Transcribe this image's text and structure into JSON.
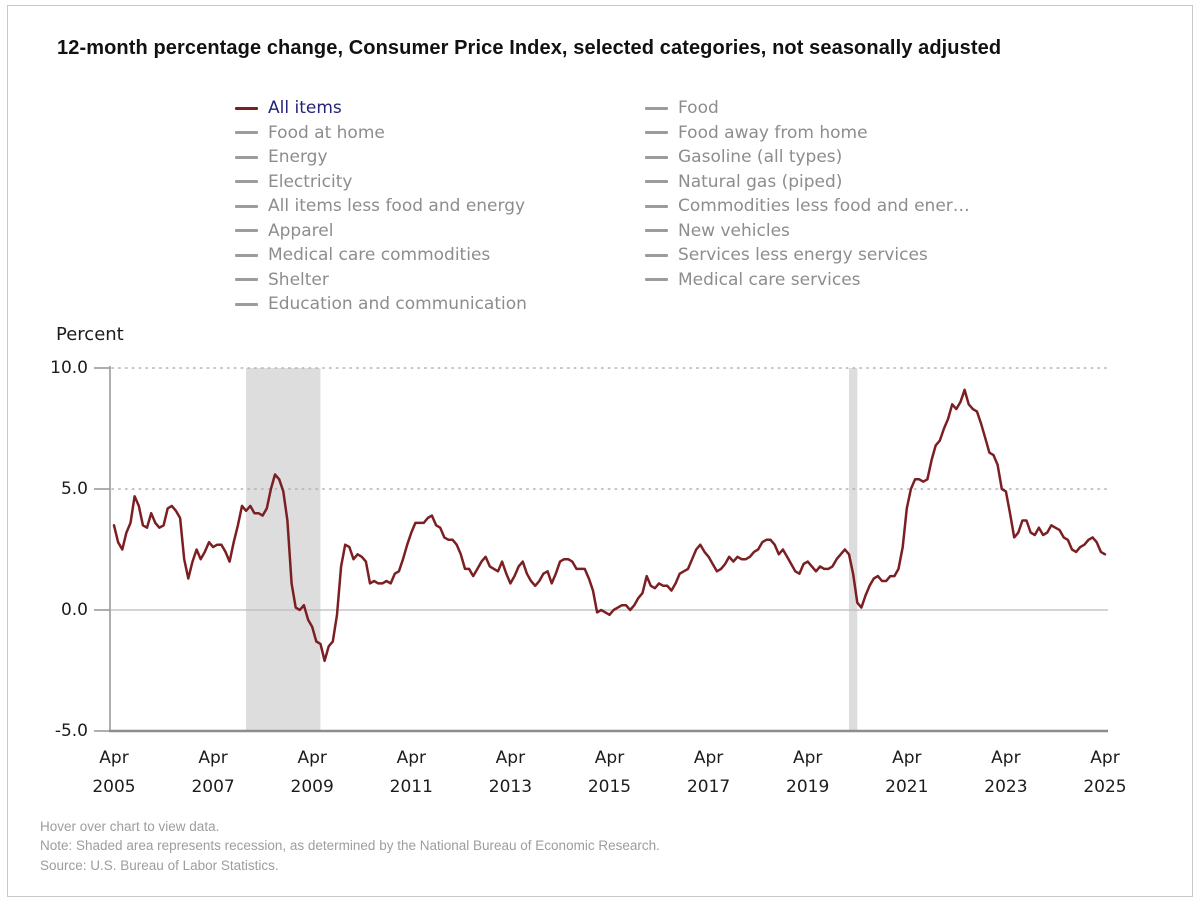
{
  "title": "12-month percentage change, Consumer Price Index, selected categories, not seasonally adjusted",
  "y_axis_title": "Percent",
  "legend": {
    "columns": [
      {
        "items": [
          {
            "label": "All items",
            "active": true
          },
          {
            "label": "Food at home",
            "active": false
          },
          {
            "label": "Energy",
            "active": false
          },
          {
            "label": "Electricity",
            "active": false
          },
          {
            "label": "All items less food and energy",
            "active": false
          },
          {
            "label": "Apparel",
            "active": false
          },
          {
            "label": "Medical care commodities",
            "active": false
          },
          {
            "label": "Shelter",
            "active": false
          },
          {
            "label": "Education and communication",
            "active": false
          }
        ]
      },
      {
        "items": [
          {
            "label": "Food",
            "active": false
          },
          {
            "label": "Food away from home",
            "active": false
          },
          {
            "label": "Gasoline (all types)",
            "active": false
          },
          {
            "label": "Natural gas (piped)",
            "active": false
          },
          {
            "label": "Commodities less food and ener…",
            "active": false
          },
          {
            "label": "New vehicles",
            "active": false
          },
          {
            "label": "Services less energy services",
            "active": false
          },
          {
            "label": "Medical care services",
            "active": false
          }
        ]
      }
    ]
  },
  "footer": {
    "hover": "Hover over chart to view data.",
    "note": "Note: Shaded area represents recession, as determined by the National Bureau of Economic Research.",
    "source": "Source: U.S. Bureau of Labor Statistics."
  },
  "colors": {
    "line": "#7c1f23",
    "legend_active_text": "#23237a",
    "legend_text": "#8d8d8d",
    "legend_swatch": "#9c9c9c",
    "recession_band": "#dddddd",
    "grid_dotted": "#b2b2b2",
    "zero_line": "#bbbbbb",
    "axis": "#9a9a9a",
    "x_axis": "#8d8d8d",
    "tick_text": "#1c1c1c",
    "footer_text": "#9d9d9d",
    "title_text": "#111111",
    "border": "#c8c8c8"
  },
  "chart_data": {
    "type": "line",
    "title": "12-month percentage change, Consumer Price Index, selected categories, not seasonally adjusted",
    "ylabel": "Percent",
    "ylim": [
      -5,
      10
    ],
    "grid": "horizontal dotted at 5.0 and 10.0, solid at 0.0",
    "legend_position": "top",
    "y_ticks": [
      {
        "value": 10.0,
        "label": "10.0",
        "grid": "dotted"
      },
      {
        "value": 5.0,
        "label": "5.0",
        "grid": "dotted"
      },
      {
        "value": 0.0,
        "label": "0.0",
        "grid": "solid"
      },
      {
        "value": -5.0,
        "label": "-5.0",
        "grid": "none"
      }
    ],
    "x_ticks": [
      {
        "date": "2005-04",
        "top": "Apr",
        "bottom": "2005"
      },
      {
        "date": "2007-04",
        "top": "Apr",
        "bottom": "2007"
      },
      {
        "date": "2009-04",
        "top": "Apr",
        "bottom": "2009"
      },
      {
        "date": "2011-04",
        "top": "Apr",
        "bottom": "2011"
      },
      {
        "date": "2013-04",
        "top": "Apr",
        "bottom": "2013"
      },
      {
        "date": "2015-04",
        "top": "Apr",
        "bottom": "2015"
      },
      {
        "date": "2017-04",
        "top": "Apr",
        "bottom": "2017"
      },
      {
        "date": "2019-04",
        "top": "Apr",
        "bottom": "2019"
      },
      {
        "date": "2021-04",
        "top": "Apr",
        "bottom": "2021"
      },
      {
        "date": "2023-04",
        "top": "Apr",
        "bottom": "2023"
      },
      {
        "date": "2025-04",
        "top": "Apr",
        "bottom": "2025"
      }
    ],
    "recessions": [
      {
        "start": "2007-12",
        "end": "2009-06"
      },
      {
        "start": "2020-02",
        "end": "2020-04"
      }
    ],
    "series": [
      {
        "name": "All items",
        "start": "2005-04",
        "frequency": "monthly",
        "values": [
          3.5,
          2.8,
          2.5,
          3.2,
          3.6,
          4.7,
          4.3,
          3.5,
          3.4,
          4.0,
          3.6,
          3.4,
          3.5,
          4.2,
          4.3,
          4.1,
          3.8,
          2.1,
          1.3,
          2.0,
          2.5,
          2.1,
          2.4,
          2.8,
          2.6,
          2.7,
          2.7,
          2.4,
          2.0,
          2.8,
          3.5,
          4.3,
          4.1,
          4.3,
          4.0,
          4.0,
          3.9,
          4.2,
          5.0,
          5.6,
          5.4,
          4.9,
          3.7,
          1.1,
          0.1,
          0.0,
          0.2,
          -0.4,
          -0.7,
          -1.3,
          -1.4,
          -2.1,
          -1.5,
          -1.3,
          -0.2,
          1.8,
          2.7,
          2.6,
          2.1,
          2.3,
          2.2,
          2.0,
          1.1,
          1.2,
          1.1,
          1.1,
          1.2,
          1.1,
          1.5,
          1.6,
          2.1,
          2.7,
          3.2,
          3.6,
          3.6,
          3.6,
          3.8,
          3.9,
          3.5,
          3.4,
          3.0,
          2.9,
          2.9,
          2.7,
          2.3,
          1.7,
          1.7,
          1.4,
          1.7,
          2.0,
          2.2,
          1.8,
          1.7,
          1.6,
          2.0,
          1.5,
          1.1,
          1.4,
          1.8,
          2.0,
          1.5,
          1.2,
          1.0,
          1.2,
          1.5,
          1.6,
          1.1,
          1.5,
          2.0,
          2.1,
          2.1,
          2.0,
          1.7,
          1.7,
          1.7,
          1.3,
          0.8,
          -0.1,
          0.0,
          -0.1,
          -0.2,
          0.0,
          0.1,
          0.2,
          0.2,
          0.0,
          0.2,
          0.5,
          0.7,
          1.4,
          1.0,
          0.9,
          1.1,
          1.0,
          1.0,
          0.8,
          1.1,
          1.5,
          1.6,
          1.7,
          2.1,
          2.5,
          2.7,
          2.4,
          2.2,
          1.9,
          1.6,
          1.7,
          1.9,
          2.2,
          2.0,
          2.2,
          2.1,
          2.1,
          2.2,
          2.4,
          2.5,
          2.8,
          2.9,
          2.9,
          2.7,
          2.3,
          2.5,
          2.2,
          1.9,
          1.6,
          1.5,
          1.9,
          2.0,
          1.8,
          1.6,
          1.8,
          1.7,
          1.7,
          1.8,
          2.1,
          2.3,
          2.5,
          2.3,
          1.5,
          0.3,
          0.1,
          0.6,
          1.0,
          1.3,
          1.4,
          1.2,
          1.2,
          1.4,
          1.4,
          1.7,
          2.6,
          4.2,
          5.0,
          5.4,
          5.4,
          5.3,
          5.4,
          6.2,
          6.8,
          7.0,
          7.5,
          7.9,
          8.5,
          8.3,
          8.6,
          9.1,
          8.5,
          8.3,
          8.2,
          7.7,
          7.1,
          6.5,
          6.4,
          6.0,
          5.0,
          4.9,
          4.0,
          3.0,
          3.2,
          3.7,
          3.7,
          3.2,
          3.1,
          3.4,
          3.1,
          3.2,
          3.5,
          3.4,
          3.3,
          3.0,
          2.9,
          2.5,
          2.4,
          2.6,
          2.7,
          2.9,
          3.0,
          2.8,
          2.4,
          2.3
        ]
      }
    ]
  }
}
